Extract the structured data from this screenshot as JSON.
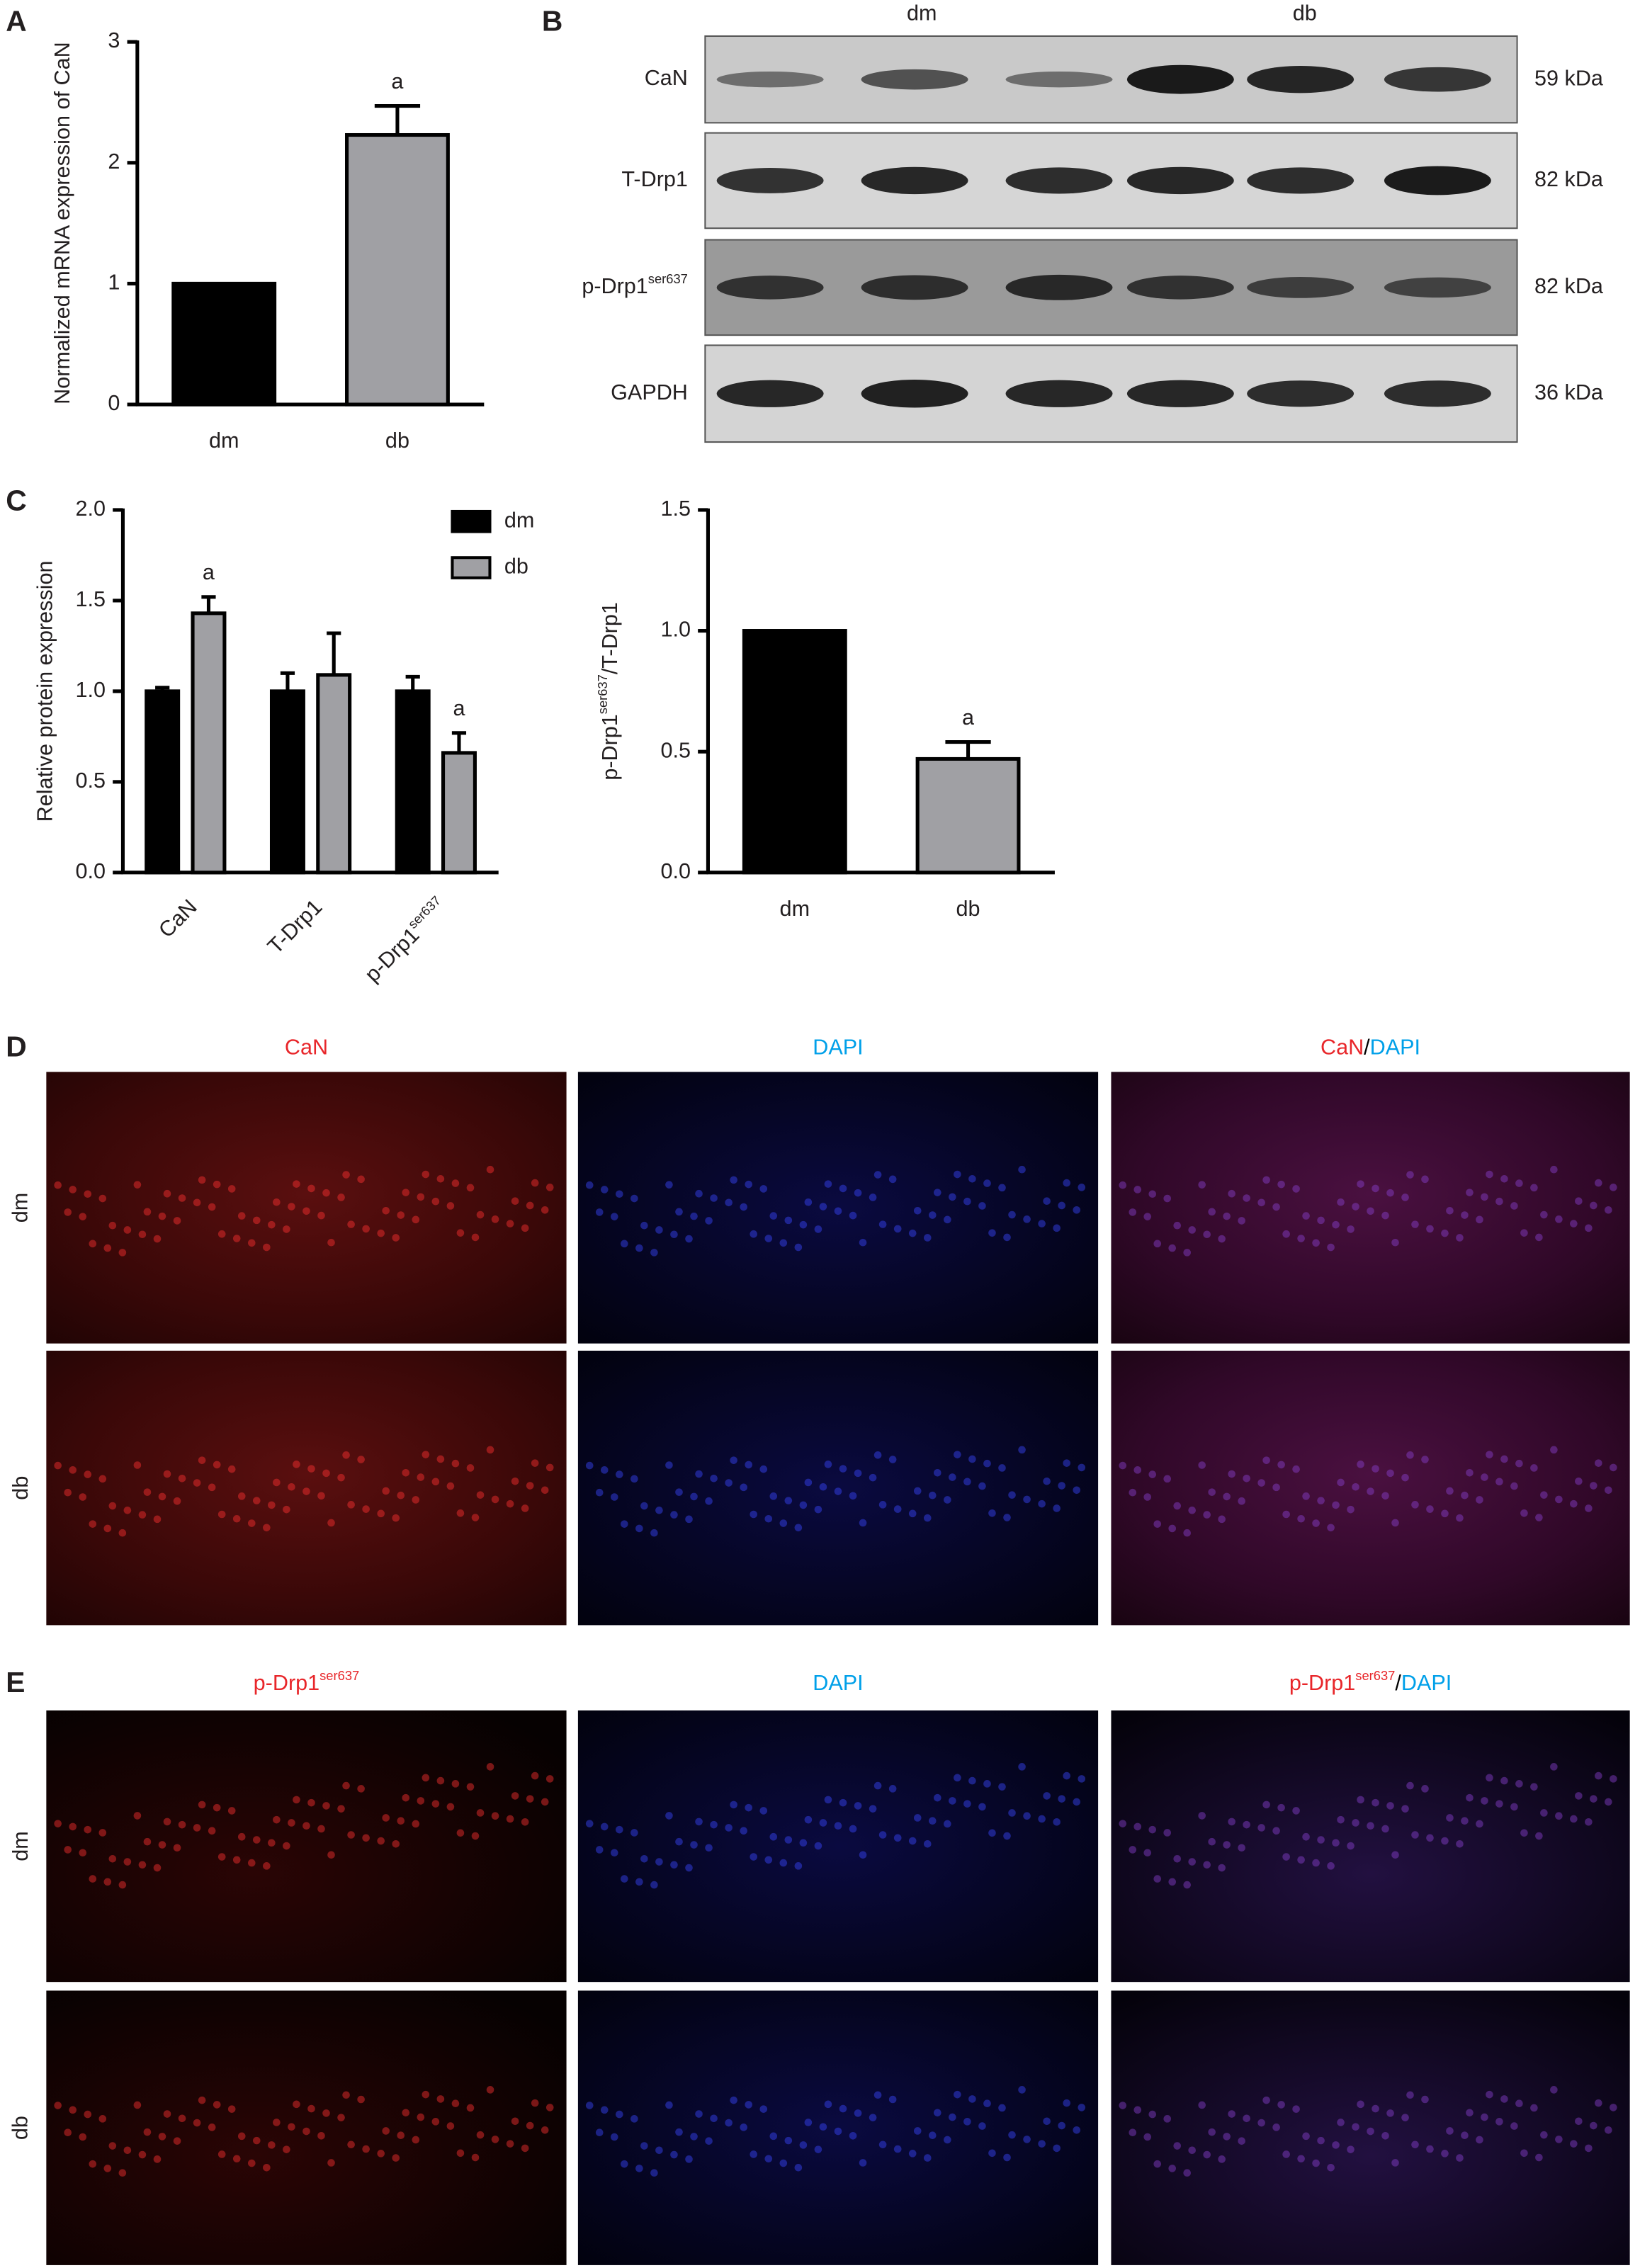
{
  "panel_labels": [
    "A",
    "B",
    "C",
    "D",
    "E"
  ],
  "chart_data": [
    {
      "type": "bar",
      "ylabel": "Normalized mRNA expression of CaN",
      "categories": [
        "dm",
        "db"
      ],
      "values": [
        1,
        2.23
      ],
      "errors": [
        null,
        0.24
      ],
      "colors": [
        "#000000",
        "#a0a0a4"
      ],
      "annotations": [
        null,
        "a"
      ],
      "ylim": [
        0,
        3
      ],
      "yticks": [
        0,
        1,
        2,
        3
      ]
    },
    {
      "type": "grouped-bar",
      "ylabel": "Relative protein expression",
      "categories": [
        "CaN",
        "T-Drp1",
        "p-Drp1"
      ],
      "category_superscripts": [
        null,
        null,
        "ser637"
      ],
      "series": [
        {
          "name": "dm",
          "color": "#000000",
          "values": [
            1.0,
            1.0,
            1.0
          ],
          "errors": [
            0.02,
            0.1,
            0.08
          ],
          "annotations": [
            null,
            null,
            null
          ]
        },
        {
          "name": "db",
          "color": "#a0a0a4",
          "values": [
            1.43,
            1.09,
            0.66
          ],
          "errors": [
            0.09,
            0.23,
            0.11
          ],
          "annotations": [
            "a",
            null,
            "a"
          ]
        }
      ],
      "legend": "top-right",
      "ylim": [
        0,
        2
      ],
      "yticks": [
        {
          "value": 0,
          "label": "0.0"
        },
        0.5,
        {
          "value": 1,
          "label": "1.0"
        },
        1.5,
        {
          "value": 2,
          "label": "2.0"
        }
      ]
    },
    {
      "type": "bar",
      "ylabel_parts": [
        {
          "text": "p-Drp1"
        },
        {
          "text": "ser637",
          "sup": true
        },
        {
          "text": "/T-Drp1"
        }
      ],
      "categories": [
        "dm",
        "db"
      ],
      "values": [
        1.0,
        0.47
      ],
      "errors": [
        null,
        0.07
      ],
      "colors": [
        "#000000",
        "#a0a0a4"
      ],
      "annotations": [
        null,
        "a"
      ],
      "ylim": [
        0,
        1.5
      ],
      "yticks": [
        {
          "value": 0,
          "label": "0.0"
        },
        0.5,
        {
          "value": 1,
          "label": "1.0"
        },
        1.5
      ]
    }
  ],
  "blot": {
    "groups": [
      "dm",
      "db"
    ],
    "rows": [
      {
        "name": "CaN",
        "size": "59 kDa"
      },
      {
        "name": "T-Drp1",
        "size": "82 kDa"
      },
      {
        "name": "p-Drp1",
        "sup": "ser637",
        "size": "82 kDa"
      },
      {
        "name": "GAPDH",
        "size": "36 kDa"
      }
    ]
  },
  "images": [
    {
      "columns": [
        [
          {
            "text": "CaN",
            "color": "#e8262a"
          }
        ],
        [
          {
            "text": "DAPI",
            "color": "#00a0e9"
          }
        ],
        [
          {
            "text": "CaN",
            "color": "#e8262a"
          },
          {
            "text": "/",
            "color": "#000000"
          },
          {
            "text": "DAPI",
            "color": "#00a0e9"
          }
        ]
      ],
      "rows": [
        "dm",
        "db"
      ]
    },
    {
      "columns": [
        [
          {
            "text": "p-Drp1",
            "color": "#e8262a"
          },
          {
            "text": "ser637",
            "color": "#e8262a",
            "sup": true
          }
        ],
        [
          {
            "text": "DAPI",
            "color": "#00a0e9"
          }
        ],
        [
          {
            "text": "p-Drp1",
            "color": "#e8262a"
          },
          {
            "text": "ser637",
            "color": "#e8262a",
            "sup": true
          },
          {
            "text": "/",
            "color": "#000000"
          },
          {
            "text": "DAPI",
            "color": "#00a0e9"
          }
        ]
      ],
      "rows": [
        "dm",
        "db"
      ]
    }
  ]
}
